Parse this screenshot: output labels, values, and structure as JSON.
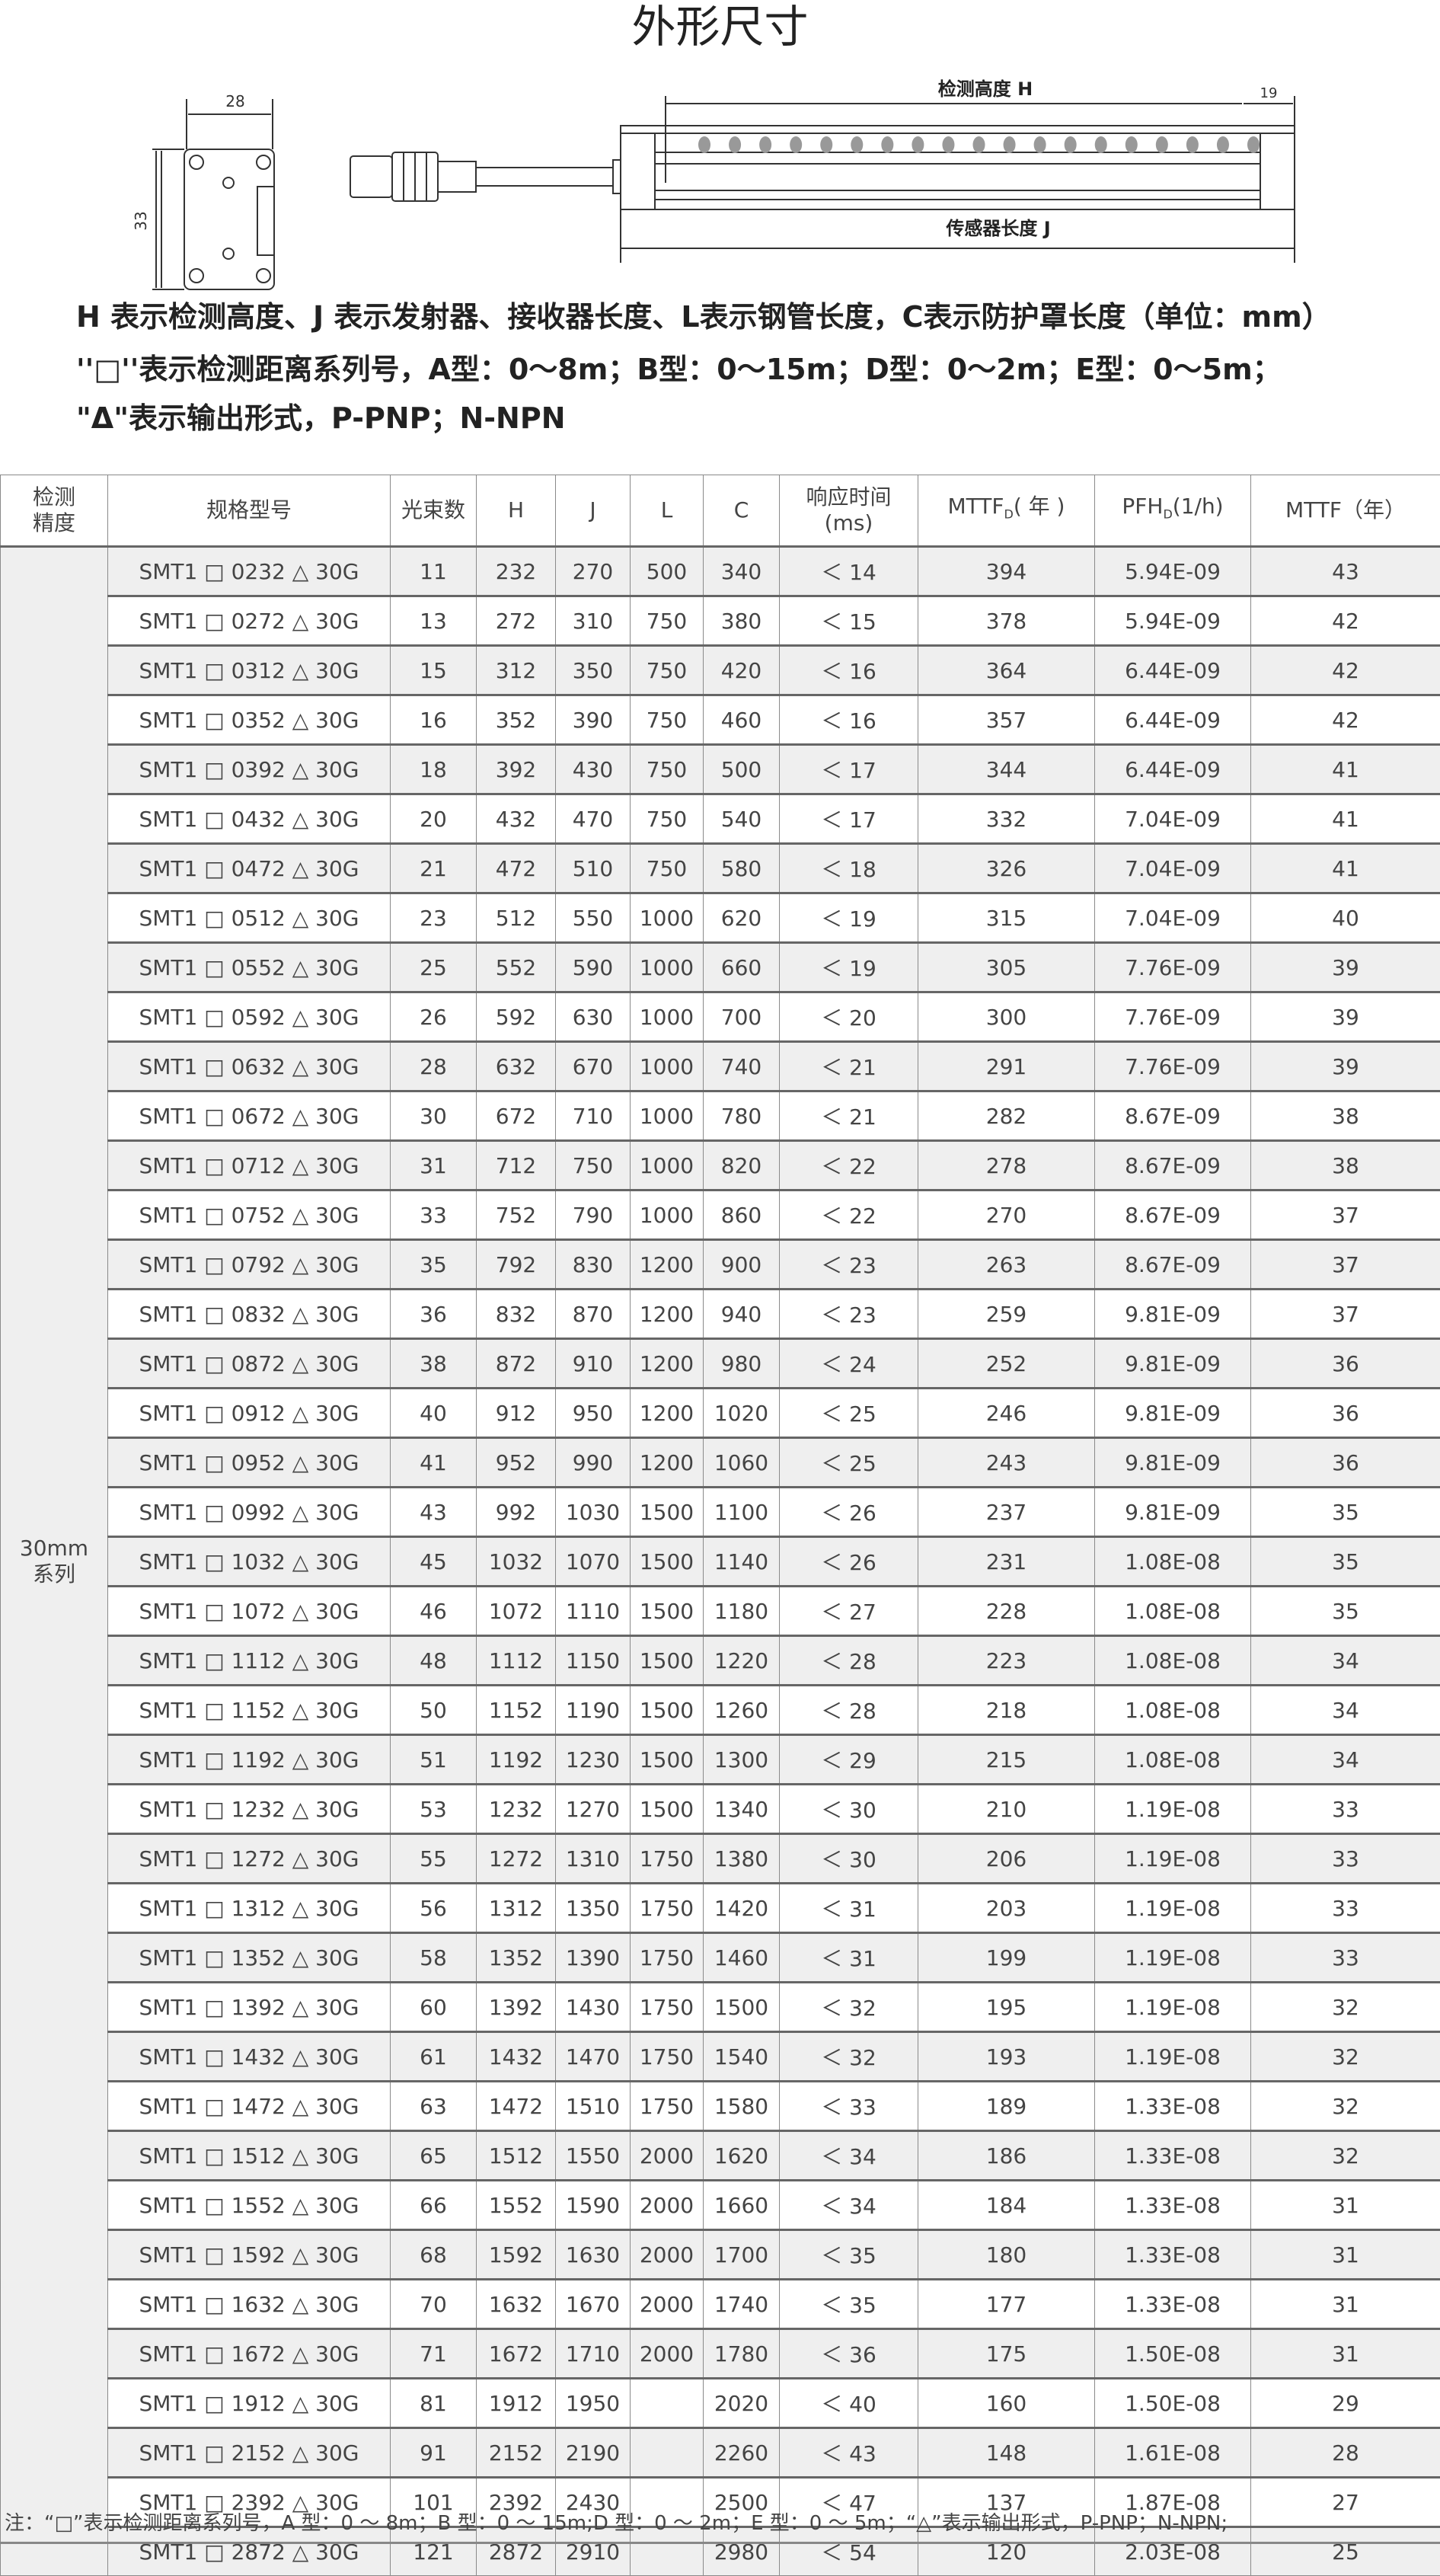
{
  "title": "外形尺寸",
  "drawing": {
    "width_label": "28",
    "height_label": "33",
    "offset_label": "19",
    "detect_height_label": "检测高度 H",
    "sensor_length_label": "传感器长度 J",
    "beam_dots": 19
  },
  "description": [
    "H 表示检测高度、J 表示发射器、接收器长度、L表示钢管长度，C表示防护罩长度（单位：mm）",
    "''□''表示检测距离系列号，A型：0～8m；B型：0～15m；D型：0～2m；E型：0～5m；",
    "\"Δ\"表示输出形式，P-PNP；N-NPN"
  ],
  "table": {
    "headers": [
      "检测精度",
      "规格型号",
      "光束数",
      "H",
      "J",
      "L",
      "C",
      "响应时间(ms)",
      "MTTFD(年)",
      "PFHD(1/h)",
      "MTTF（年）"
    ],
    "header_parts": {
      "precision": [
        "检测",
        "精度"
      ],
      "response": [
        "响应时间",
        "(ms)"
      ],
      "mttfd": [
        "MTTF",
        "D",
        "( 年 )"
      ],
      "pfhd": [
        "PFH",
        "D",
        "(1/h)"
      ]
    },
    "group_label": [
      "30mm",
      "系列"
    ],
    "rows": [
      [
        "SMT1 □ 0232 △ 30G",
        "11",
        "232",
        "270",
        "500",
        "340",
        "＜ 14",
        "394",
        "5.94E-09",
        "43"
      ],
      [
        "SMT1 □ 0272 △ 30G",
        "13",
        "272",
        "310",
        "750",
        "380",
        "＜ 15",
        "378",
        "5.94E-09",
        "42"
      ],
      [
        "SMT1 □ 0312 △ 30G",
        "15",
        "312",
        "350",
        "750",
        "420",
        "＜ 16",
        "364",
        "6.44E-09",
        "42"
      ],
      [
        "SMT1 □ 0352 △ 30G",
        "16",
        "352",
        "390",
        "750",
        "460",
        "＜ 16",
        "357",
        "6.44E-09",
        "42"
      ],
      [
        "SMT1 □ 0392 △ 30G",
        "18",
        "392",
        "430",
        "750",
        "500",
        "＜ 17",
        "344",
        "6.44E-09",
        "41"
      ],
      [
        "SMT1 □ 0432 △ 30G",
        "20",
        "432",
        "470",
        "750",
        "540",
        "＜ 17",
        "332",
        "7.04E-09",
        "41"
      ],
      [
        "SMT1 □ 0472 △ 30G",
        "21",
        "472",
        "510",
        "750",
        "580",
        "＜ 18",
        "326",
        "7.04E-09",
        "41"
      ],
      [
        "SMT1 □ 0512 △ 30G",
        "23",
        "512",
        "550",
        "1000",
        "620",
        "＜ 19",
        "315",
        "7.04E-09",
        "40"
      ],
      [
        "SMT1 □ 0552 △ 30G",
        "25",
        "552",
        "590",
        "1000",
        "660",
        "＜ 19",
        "305",
        "7.76E-09",
        "39"
      ],
      [
        "SMT1 □ 0592 △ 30G",
        "26",
        "592",
        "630",
        "1000",
        "700",
        "＜ 20",
        "300",
        "7.76E-09",
        "39"
      ],
      [
        "SMT1 □ 0632 △ 30G",
        "28",
        "632",
        "670",
        "1000",
        "740",
        "＜ 21",
        "291",
        "7.76E-09",
        "39"
      ],
      [
        "SMT1 □ 0672 △ 30G",
        "30",
        "672",
        "710",
        "1000",
        "780",
        "＜ 21",
        "282",
        "8.67E-09",
        "38"
      ],
      [
        "SMT1 □ 0712 △ 30G",
        "31",
        "712",
        "750",
        "1000",
        "820",
        "＜ 22",
        "278",
        "8.67E-09",
        "38"
      ],
      [
        "SMT1 □ 0752 △ 30G",
        "33",
        "752",
        "790",
        "1000",
        "860",
        "＜ 22",
        "270",
        "8.67E-09",
        "37"
      ],
      [
        "SMT1 □ 0792 △ 30G",
        "35",
        "792",
        "830",
        "1200",
        "900",
        "＜ 23",
        "263",
        "8.67E-09",
        "37"
      ],
      [
        "SMT1 □ 0832 △ 30G",
        "36",
        "832",
        "870",
        "1200",
        "940",
        "＜ 23",
        "259",
        "9.81E-09",
        "37"
      ],
      [
        "SMT1 □ 0872 △ 30G",
        "38",
        "872",
        "910",
        "1200",
        "980",
        "＜ 24",
        "252",
        "9.81E-09",
        "36"
      ],
      [
        "SMT1 □ 0912 △ 30G",
        "40",
        "912",
        "950",
        "1200",
        "1020",
        "＜ 25",
        "246",
        "9.81E-09",
        "36"
      ],
      [
        "SMT1 □ 0952 △ 30G",
        "41",
        "952",
        "990",
        "1200",
        "1060",
        "＜ 25",
        "243",
        "9.81E-09",
        "36"
      ],
      [
        "SMT1 □ 0992 △ 30G",
        "43",
        "992",
        "1030",
        "1500",
        "1100",
        "＜ 26",
        "237",
        "9.81E-09",
        "35"
      ],
      [
        "SMT1 □ 1032 △ 30G",
        "45",
        "1032",
        "1070",
        "1500",
        "1140",
        "＜ 26",
        "231",
        "1.08E-08",
        "35"
      ],
      [
        "SMT1 □ 1072 △ 30G",
        "46",
        "1072",
        "1110",
        "1500",
        "1180",
        "＜ 27",
        "228",
        "1.08E-08",
        "35"
      ],
      [
        "SMT1 □ 1112 △ 30G",
        "48",
        "1112",
        "1150",
        "1500",
        "1220",
        "＜ 28",
        "223",
        "1.08E-08",
        "34"
      ],
      [
        "SMT1 □ 1152 △ 30G",
        "50",
        "1152",
        "1190",
        "1500",
        "1260",
        "＜ 28",
        "218",
        "1.08E-08",
        "34"
      ],
      [
        "SMT1 □ 1192 △ 30G",
        "51",
        "1192",
        "1230",
        "1500",
        "1300",
        "＜ 29",
        "215",
        "1.08E-08",
        "34"
      ],
      [
        "SMT1 □ 1232 △ 30G",
        "53",
        "1232",
        "1270",
        "1500",
        "1340",
        "＜ 30",
        "210",
        "1.19E-08",
        "33"
      ],
      [
        "SMT1 □ 1272 △ 30G",
        "55",
        "1272",
        "1310",
        "1750",
        "1380",
        "＜ 30",
        "206",
        "1.19E-08",
        "33"
      ],
      [
        "SMT1 □ 1312 △ 30G",
        "56",
        "1312",
        "1350",
        "1750",
        "1420",
        "＜ 31",
        "203",
        "1.19E-08",
        "33"
      ],
      [
        "SMT1 □ 1352 △ 30G",
        "58",
        "1352",
        "1390",
        "1750",
        "1460",
        "＜ 31",
        "199",
        "1.19E-08",
        "33"
      ],
      [
        "SMT1 □ 1392 △ 30G",
        "60",
        "1392",
        "1430",
        "1750",
        "1500",
        "＜ 32",
        "195",
        "1.19E-08",
        "32"
      ],
      [
        "SMT1 □ 1432 △ 30G",
        "61",
        "1432",
        "1470",
        "1750",
        "1540",
        "＜ 32",
        "193",
        "1.19E-08",
        "32"
      ],
      [
        "SMT1 □ 1472 △ 30G",
        "63",
        "1472",
        "1510",
        "1750",
        "1580",
        "＜ 33",
        "189",
        "1.33E-08",
        "32"
      ],
      [
        "SMT1 □ 1512 △ 30G",
        "65",
        "1512",
        "1550",
        "2000",
        "1620",
        "＜ 34",
        "186",
        "1.33E-08",
        "32"
      ],
      [
        "SMT1 □ 1552 △ 30G",
        "66",
        "1552",
        "1590",
        "2000",
        "1660",
        "＜ 34",
        "184",
        "1.33E-08",
        "31"
      ],
      [
        "SMT1 □ 1592 △ 30G",
        "68",
        "1592",
        "1630",
        "2000",
        "1700",
        "＜ 35",
        "180",
        "1.33E-08",
        "31"
      ],
      [
        "SMT1 □ 1632 △ 30G",
        "70",
        "1632",
        "1670",
        "2000",
        "1740",
        "＜ 35",
        "177",
        "1.33E-08",
        "31"
      ],
      [
        "SMT1 □ 1672 △ 30G",
        "71",
        "1672",
        "1710",
        "2000",
        "1780",
        "＜ 36",
        "175",
        "1.50E-08",
        "31"
      ],
      [
        "SMT1 □ 1912 △ 30G",
        "81",
        "1912",
        "1950",
        "",
        "2020",
        "＜ 40",
        "160",
        "1.50E-08",
        "29"
      ],
      [
        "SMT1 □ 2152 △ 30G",
        "91",
        "2152",
        "2190",
        "",
        "2260",
        "＜ 43",
        "148",
        "1.61E-08",
        "28"
      ],
      [
        "SMT1 □ 2392 △ 30G",
        "101",
        "2392",
        "2430",
        "",
        "2500",
        "＜ 47",
        "137",
        "1.87E-08",
        "27"
      ],
      [
        "SMT1 □ 2872 △ 30G",
        "121",
        "2872",
        "2910",
        "",
        "2980",
        "＜ 54",
        "120",
        "2.03E-08",
        "25"
      ]
    ]
  },
  "note": "注：“□”表示检测距离系列号，A 型：0 ～ 8m；B 型：0 ～ 15m;D 型：0 ～ 2m；E 型：0 ～ 5m；“△”表示输出形式，P-PNP；N-NPN;"
}
